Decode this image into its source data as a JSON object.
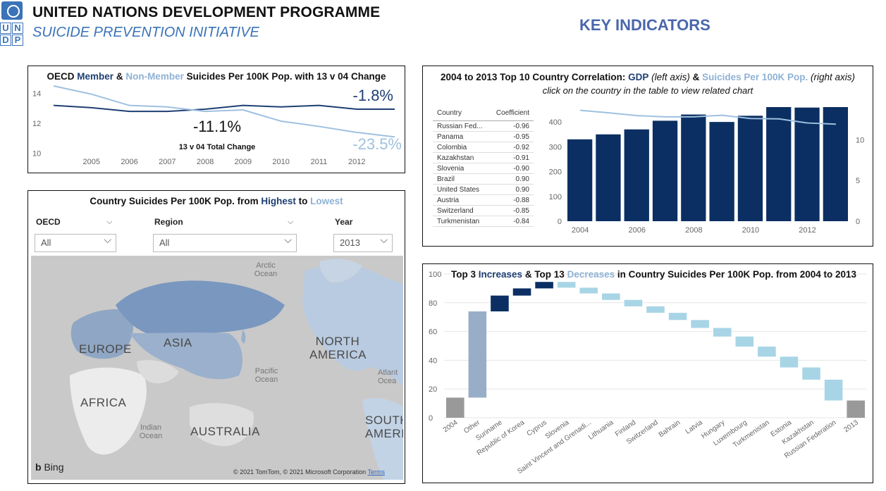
{
  "header": {
    "logo_letters": [
      "U",
      "N",
      "D",
      "P"
    ],
    "org_title": "UNITED NATIONS DEVELOPMENT PROGRAMME",
    "subtitle": "SUICIDE PREVENTION INITIATIVE",
    "key_indicators": "KEY INDICATORS"
  },
  "colors": {
    "dark_blue": "#1e3f72",
    "navy_bar": "#0b2f62",
    "light_blue": "#9fc0e0",
    "decrease": "#a8d5e6",
    "total_gray": "#999999",
    "other_gray": "#98aec6"
  },
  "line_panel": {
    "title_pre": "OECD ",
    "title_member": "Member",
    "title_amp": " & ",
    "title_nonmember": "Non-Member",
    "title_post": " Suicides Per 100K Pop. with 13 v 04 Change",
    "member_change": "-1.8%",
    "nonmember_change": "-23.5%",
    "total_change": "-11.1%",
    "total_label": "13 v 04 Total Change"
  },
  "map_panel": {
    "title_pre": "Country Suicides Per 100K Pop. from ",
    "title_high": "Highest",
    "title_to": " to ",
    "title_low": "Lowest",
    "slicers": [
      {
        "label": "OECD",
        "value": "All"
      },
      {
        "label": "Region",
        "value": "All"
      },
      {
        "label": "Year",
        "value": "2013"
      }
    ],
    "map_labels": {
      "europe": "EUROPE",
      "asia": "ASIA",
      "africa": "AFRICA",
      "australia": "AUSTRALIA",
      "north_america_1": "NORTH",
      "north_america_2": "AMERICA",
      "south_america_1": "SOUTH",
      "south_america_2": "AMERICA",
      "arctic_1": "Arctic",
      "arctic_2": "Ocean",
      "pacific_1": "Pacific",
      "pacific_2": "Ocean",
      "indian_1": "Indian",
      "indian_2": "Ocean",
      "atlantic_1": "Atlant",
      "atlantic_2": "Ocea"
    },
    "bing": "Bing",
    "copyright": "© 2021 TomTom, © 2021 Microsoft Corporation",
    "terms": "Terms"
  },
  "corr_panel": {
    "title_pre": "2004 to 2013 Top 10 Country Correlation: ",
    "title_gdp": "GDP",
    "title_left": " (left axis) ",
    "title_amp": "& ",
    "title_suic": "Suicides Per 100K Pop.",
    "title_right": " (right axis)",
    "subtitle": "click on the country in the table to view related chart",
    "table": {
      "headers": [
        "Country",
        "Coefficient"
      ],
      "rows": [
        [
          "Russian Fed...",
          "-0.96"
        ],
        [
          "Panama",
          "-0.95"
        ],
        [
          "Colombia",
          "-0.92"
        ],
        [
          "Kazakhstan",
          "-0.91"
        ],
        [
          "Slovenia",
          "-0.90"
        ],
        [
          "Brazil",
          "0.90"
        ],
        [
          "United States",
          "0.90"
        ],
        [
          "Austria",
          "-0.88"
        ],
        [
          "Switzerland",
          "-0.85"
        ],
        [
          "Turkmenistan",
          "-0.84"
        ]
      ]
    }
  },
  "waterfall_panel": {
    "title_pre": "Top 3 ",
    "title_inc": "Increases",
    "title_mid": " & Top 13 ",
    "title_dec": "Decreases",
    "title_post": " in Country Suicides Per 100K Pop. from 2004 to 2013"
  },
  "chart_data": [
    {
      "type": "line",
      "x": [
        2004,
        2005,
        2006,
        2007,
        2008,
        2009,
        2010,
        2011,
        2012,
        2013
      ],
      "x_ticks": [
        "2005",
        "2006",
        "2007",
        "2008",
        "2009",
        "2010",
        "2011",
        "2012"
      ],
      "series": [
        {
          "values": [
            13.2,
            13.05,
            12.8,
            12.8,
            12.95,
            13.2,
            13.1,
            13.2,
            12.95,
            12.95
          ]
        },
        {
          "values": [
            14.5,
            13.95,
            13.2,
            13.1,
            12.8,
            12.9,
            12.15,
            11.8,
            11.4,
            11.1
          ]
        }
      ],
      "y_ticks": [
        10,
        12,
        14
      ],
      "ylim": [
        9.8,
        14.5
      ],
      "grid": false
    },
    {
      "type": "bar",
      "categories": [
        2004,
        2005,
        2006,
        2007,
        2008,
        2009,
        2010,
        2011,
        2012,
        2013
      ],
      "x_ticks": [
        "2004",
        "2006",
        "2008",
        "2010",
        "2012"
      ],
      "series": [
        {
          "values": [
            330,
            350,
            370,
            405,
            430,
            400,
            425,
            460,
            458,
            460
          ]
        }
      ],
      "line_series": {
        "values": [
          13.6,
          13.3,
          12.95,
          12.8,
          12.8,
          13.0,
          12.6,
          12.55,
          12.05,
          11.9
        ]
      },
      "y_left_ticks": [
        0,
        100,
        200,
        300,
        400
      ],
      "ylim_left": [
        0,
        460
      ],
      "y_right_ticks": [
        0,
        5,
        10
      ],
      "ylim_right": [
        0,
        14
      ],
      "grid": false
    },
    {
      "type": "bar",
      "subtype": "waterfall",
      "categories": [
        "2004",
        "Other",
        "Suriname",
        "Republic of Korea",
        "Cyprus",
        "Slovenia",
        "Saint Vincent and Grenadi...",
        "Lithuania",
        "Finland",
        "Switzerland",
        "Bahrain",
        "Latvia",
        "Hungary",
        "Luxembourg",
        "Turkmenistan",
        "Estonia",
        "Kazakhstan",
        "Russian Federation",
        "2013"
      ],
      "bars": [
        {
          "kind": "total",
          "start": 0,
          "end": 14
        },
        {
          "kind": "other",
          "start": 14,
          "end": 74
        },
        {
          "kind": "increase",
          "start": 74,
          "end": 85
        },
        {
          "kind": "increase",
          "start": 85,
          "end": 90
        },
        {
          "kind": "increase",
          "start": 90,
          "end": 94.5
        },
        {
          "kind": "decrease",
          "start": 94.5,
          "end": 90.5
        },
        {
          "kind": "decrease",
          "start": 90.5,
          "end": 86.5
        },
        {
          "kind": "decrease",
          "start": 86.5,
          "end": 82
        },
        {
          "kind": "decrease",
          "start": 82,
          "end": 77.5
        },
        {
          "kind": "decrease",
          "start": 77.5,
          "end": 73
        },
        {
          "kind": "decrease",
          "start": 73,
          "end": 68
        },
        {
          "kind": "decrease",
          "start": 68,
          "end": 62.5
        },
        {
          "kind": "decrease",
          "start": 62.5,
          "end": 56.5
        },
        {
          "kind": "decrease",
          "start": 56.5,
          "end": 49.5
        },
        {
          "kind": "decrease",
          "start": 49.5,
          "end": 42.5
        },
        {
          "kind": "decrease",
          "start": 42.5,
          "end": 35
        },
        {
          "kind": "decrease",
          "start": 35,
          "end": 26.5
        },
        {
          "kind": "decrease",
          "start": 26.5,
          "end": 12
        },
        {
          "kind": "total",
          "start": 0,
          "end": 12
        }
      ],
      "y_ticks": [
        0,
        20,
        40,
        60,
        80,
        100
      ],
      "ylim": [
        0,
        100
      ],
      "grid": true
    }
  ]
}
